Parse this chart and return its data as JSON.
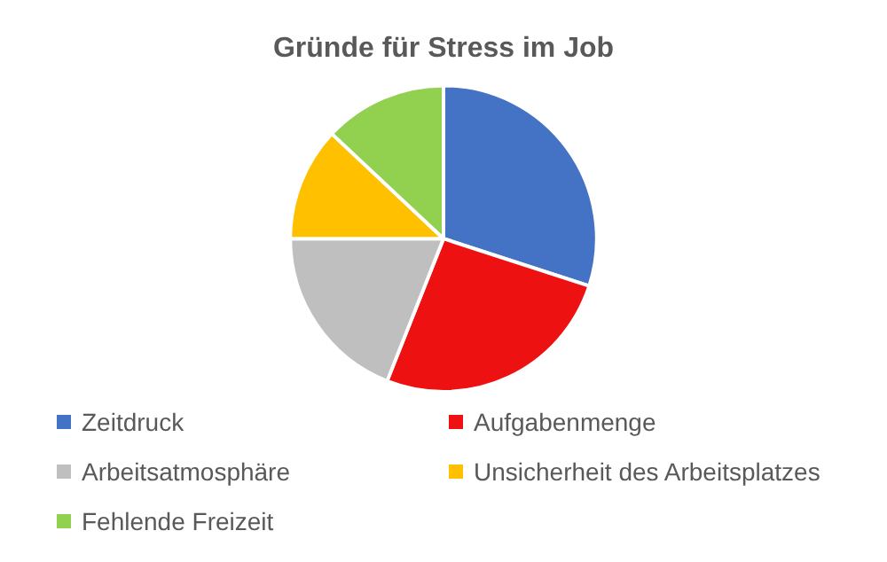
{
  "chart_data": {
    "type": "pie",
    "title": "Gründe für Stress im Job",
    "categories": [
      "Zeitdruck",
      "Aufgabenmenge",
      "Arbeitsatmosphäre",
      "Unsicherheit des Arbeitsplatzes",
      "Fehlende Freizeit"
    ],
    "values": [
      30,
      26,
      19,
      12,
      13
    ],
    "colors": [
      "#4472c4",
      "#ee1111",
      "#bfbfbf",
      "#ffc000",
      "#92d050"
    ],
    "legend": "bottom"
  }
}
